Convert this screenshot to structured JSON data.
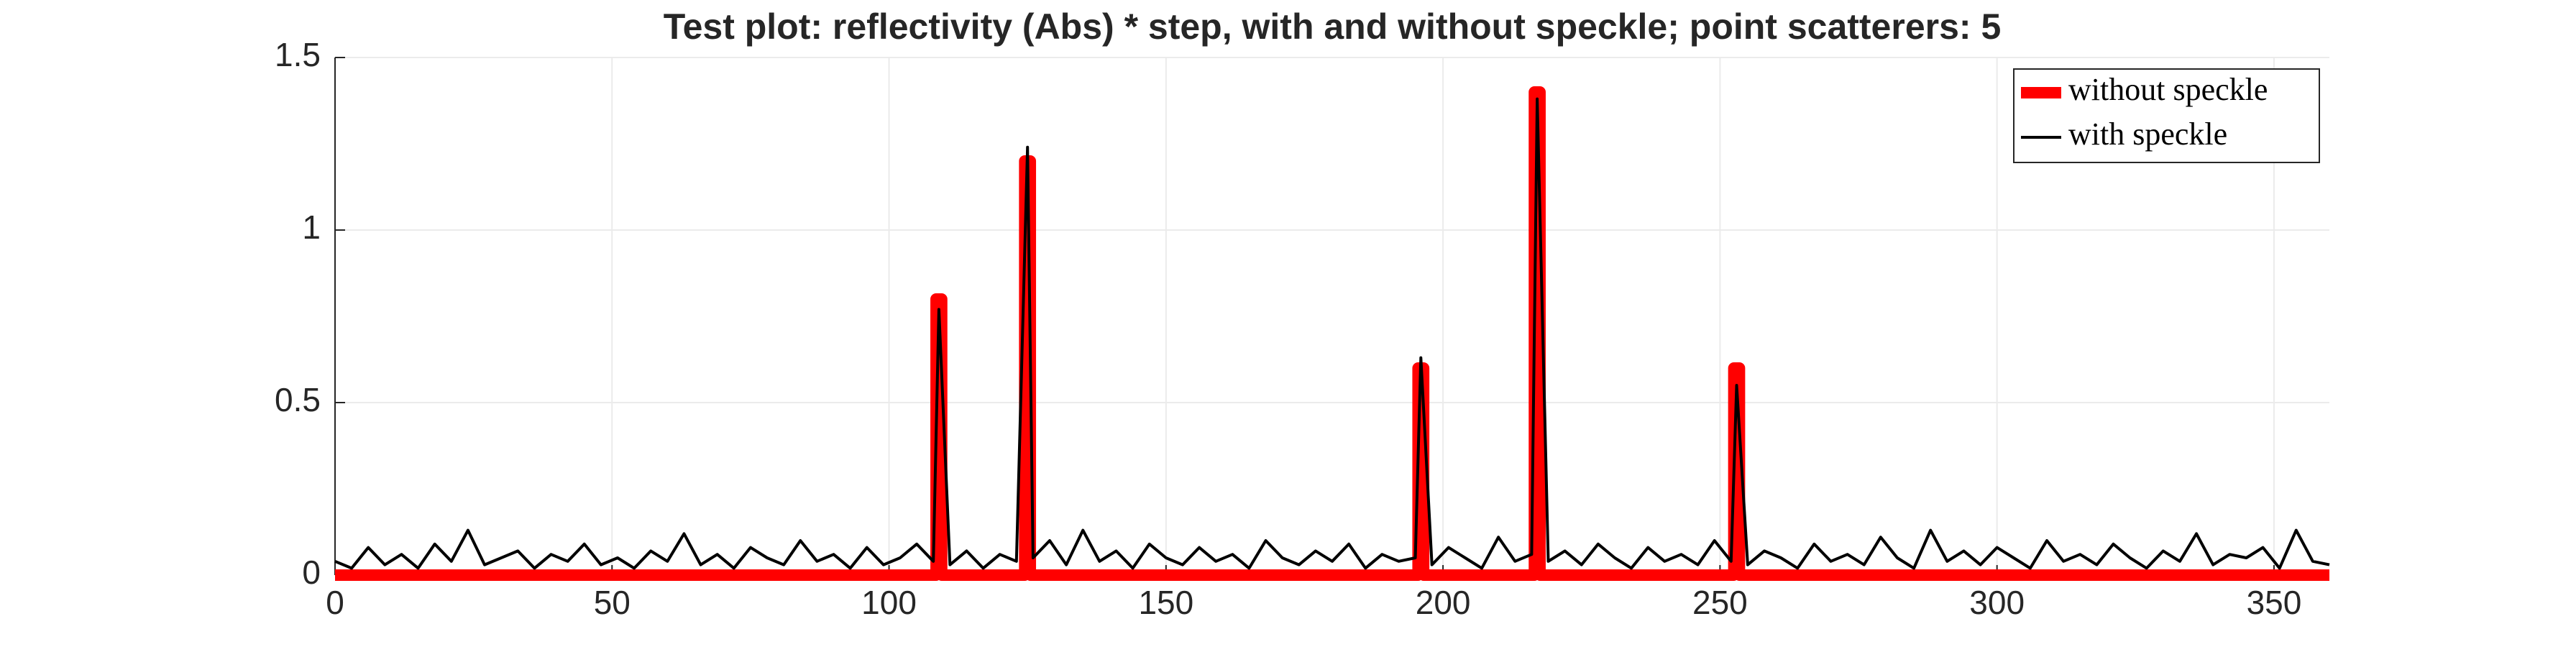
{
  "chart_data": {
    "type": "line",
    "title": "Test plot: reflectivity (Abs) * step, with and without speckle; point scatterers: 5",
    "xlim": [
      0,
      360
    ],
    "xticks": [
      0,
      50,
      100,
      150,
      200,
      250,
      300,
      350
    ],
    "ylim": [
      0,
      1.5
    ],
    "yticks": [
      0,
      0.5,
      1,
      1.5
    ],
    "grid": true,
    "legend": "upper-right",
    "series": [
      {
        "name": "without speckle",
        "color": "#ff0000",
        "line_width": 16,
        "x": [
          0,
          108.5,
          108.5,
          109.5,
          109.5,
          124.5,
          124.5,
          125.5,
          125.5,
          195.5,
          195.5,
          196.5,
          196.5,
          216.5,
          216.5,
          217.5,
          217.5,
          252.5,
          252.5,
          253.5,
          253.5,
          360
        ],
        "values": [
          0,
          0,
          0.8,
          0.8,
          0,
          0,
          1.2,
          1.2,
          0,
          0,
          0.6,
          0.6,
          0,
          0,
          1.4,
          1.4,
          0,
          0,
          0.6,
          0.6,
          0,
          0
        ]
      },
      {
        "name": "with speckle",
        "color": "#000000",
        "line_width": 4,
        "x": [
          0,
          3,
          6,
          9,
          12,
          15,
          18,
          21,
          24,
          27,
          30,
          33,
          36,
          39,
          42,
          45,
          48,
          51,
          54,
          57,
          60,
          63,
          66,
          69,
          72,
          75,
          78,
          81,
          84,
          87,
          90,
          93,
          96,
          99,
          102,
          105,
          108,
          109,
          111,
          114,
          117,
          120,
          123,
          125,
          126,
          129,
          132,
          135,
          138,
          141,
          144,
          147,
          150,
          153,
          156,
          159,
          162,
          165,
          168,
          171,
          174,
          177,
          180,
          183,
          186,
          189,
          192,
          195,
          196,
          198,
          201,
          204,
          207,
          210,
          213,
          216,
          217,
          219,
          222,
          225,
          228,
          231,
          234,
          237,
          240,
          243,
          246,
          249,
          252,
          253,
          255,
          258,
          261,
          264,
          267,
          270,
          273,
          276,
          279,
          282,
          285,
          288,
          291,
          294,
          297,
          300,
          303,
          306,
          309,
          312,
          315,
          318,
          321,
          324,
          327,
          330,
          333,
          336,
          339,
          342,
          345,
          348,
          351,
          354,
          357,
          360
        ],
        "values": [
          0.04,
          0.02,
          0.08,
          0.03,
          0.06,
          0.02,
          0.09,
          0.04,
          0.13,
          0.03,
          0.05,
          0.07,
          0.02,
          0.06,
          0.04,
          0.09,
          0.03,
          0.05,
          0.02,
          0.07,
          0.04,
          0.12,
          0.03,
          0.06,
          0.02,
          0.08,
          0.05,
          0.03,
          0.1,
          0.04,
          0.06,
          0.02,
          0.08,
          0.03,
          0.05,
          0.09,
          0.04,
          0.77,
          0.03,
          0.07,
          0.02,
          0.06,
          0.04,
          1.24,
          0.05,
          0.1,
          0.03,
          0.13,
          0.04,
          0.07,
          0.02,
          0.09,
          0.05,
          0.03,
          0.08,
          0.04,
          0.06,
          0.02,
          0.1,
          0.05,
          0.03,
          0.07,
          0.04,
          0.09,
          0.02,
          0.06,
          0.04,
          0.05,
          0.63,
          0.03,
          0.08,
          0.05,
          0.02,
          0.11,
          0.04,
          0.06,
          1.38,
          0.04,
          0.07,
          0.03,
          0.09,
          0.05,
          0.02,
          0.08,
          0.04,
          0.06,
          0.03,
          0.1,
          0.04,
          0.55,
          0.03,
          0.07,
          0.05,
          0.02,
          0.09,
          0.04,
          0.06,
          0.03,
          0.11,
          0.05,
          0.02,
          0.13,
          0.04,
          0.07,
          0.03,
          0.08,
          0.05,
          0.02,
          0.1,
          0.04,
          0.06,
          0.03,
          0.09,
          0.05,
          0.02,
          0.07,
          0.04,
          0.12,
          0.03,
          0.06,
          0.05,
          0.08,
          0.02,
          0.13,
          0.04,
          0.03
        ]
      }
    ]
  }
}
